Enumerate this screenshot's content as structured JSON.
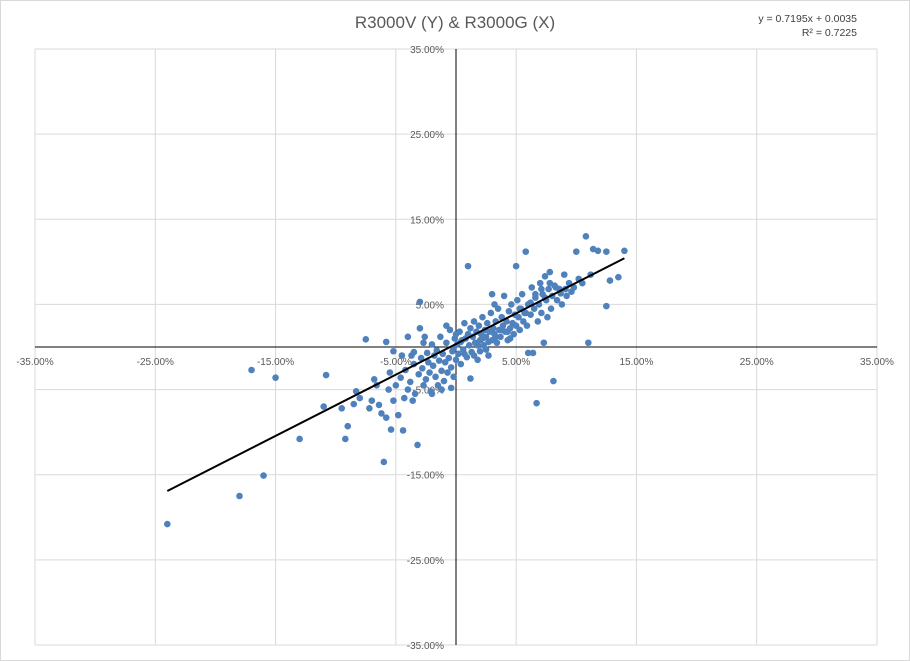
{
  "chart_data": {
    "type": "scatter",
    "title": "R3000V (Y) & R3000G (X)",
    "xlabel": "",
    "ylabel": "",
    "xlim": [
      -0.35,
      0.35
    ],
    "ylim": [
      -0.35,
      0.35
    ],
    "grid": true,
    "x_ticks": [
      "-35.00%",
      "-25.00%",
      "-15.00%",
      "-5.00%",
      "5.00%",
      "15.00%",
      "25.00%",
      "35.00%"
    ],
    "x_tick_values": [
      -0.35,
      -0.25,
      -0.15,
      -0.05,
      0.05,
      0.15,
      0.25,
      0.35
    ],
    "y_ticks": [
      "35.00%",
      "25.00%",
      "15.00%",
      "5.00%",
      "-5.00%",
      "-15.00%",
      "-25.00%",
      "-35.00%"
    ],
    "y_tick_values": [
      0.35,
      0.25,
      0.15,
      0.05,
      -0.05,
      -0.15,
      -0.25,
      -0.35
    ],
    "trendline": {
      "equation": "y = 0.7195x + 0.0035",
      "r_squared": "R² = 0.7225",
      "slope": 0.7195,
      "intercept": 0.0035,
      "x_range": [
        -0.24,
        0.14
      ]
    },
    "colors": {
      "points": "#4f81bd",
      "trendline": "#000000",
      "grid": "#d9d9d9",
      "axis": "#000000"
    },
    "series": [
      {
        "points": [
          [
            -0.24,
            -0.208
          ],
          [
            -0.18,
            -0.175
          ],
          [
            -0.16,
            -0.151
          ],
          [
            -0.17,
            -0.027
          ],
          [
            -0.15,
            -0.036
          ],
          [
            -0.13,
            -0.108
          ],
          [
            -0.11,
            -0.07
          ],
          [
            -0.108,
            -0.033
          ],
          [
            -0.095,
            -0.072
          ],
          [
            -0.09,
            -0.093
          ],
          [
            -0.092,
            -0.108
          ],
          [
            -0.085,
            -0.067
          ],
          [
            -0.083,
            -0.052
          ],
          [
            -0.08,
            -0.06
          ],
          [
            -0.075,
            0.009
          ],
          [
            -0.072,
            -0.072
          ],
          [
            -0.07,
            -0.063
          ],
          [
            -0.068,
            -0.038
          ],
          [
            -0.066,
            -0.045
          ],
          [
            -0.064,
            -0.068
          ],
          [
            -0.062,
            -0.078
          ],
          [
            -0.06,
            -0.135
          ],
          [
            -0.058,
            -0.083
          ],
          [
            -0.056,
            -0.05
          ],
          [
            -0.055,
            -0.03
          ],
          [
            -0.054,
            -0.097
          ],
          [
            -0.052,
            -0.063
          ],
          [
            -0.05,
            -0.045
          ],
          [
            -0.048,
            -0.08
          ],
          [
            -0.046,
            -0.036
          ],
          [
            -0.044,
            -0.098
          ],
          [
            -0.043,
            -0.06
          ],
          [
            -0.042,
            -0.027
          ],
          [
            -0.04,
            -0.05
          ],
          [
            -0.038,
            -0.041
          ],
          [
            -0.037,
            -0.01
          ],
          [
            -0.036,
            -0.063
          ],
          [
            -0.035,
            -0.02
          ],
          [
            -0.034,
            -0.055
          ],
          [
            -0.032,
            -0.115
          ],
          [
            -0.031,
            -0.032
          ],
          [
            -0.03,
            0.022
          ],
          [
            -0.03,
            0.053
          ],
          [
            -0.029,
            -0.013
          ],
          [
            -0.028,
            -0.025
          ],
          [
            -0.027,
            -0.045
          ],
          [
            -0.026,
            0.012
          ],
          [
            -0.025,
            -0.038
          ],
          [
            -0.024,
            -0.007
          ],
          [
            -0.023,
            -0.018
          ],
          [
            -0.022,
            -0.03
          ],
          [
            -0.021,
            -0.052
          ],
          [
            -0.02,
            0.003
          ],
          [
            -0.019,
            -0.022
          ],
          [
            -0.018,
            -0.01
          ],
          [
            -0.017,
            -0.035
          ],
          [
            -0.016,
            -0.004
          ],
          [
            -0.015,
            -0.045
          ],
          [
            -0.014,
            -0.016
          ],
          [
            -0.013,
            0.012
          ],
          [
            -0.012,
            -0.028
          ],
          [
            -0.011,
            -0.008
          ],
          [
            -0.01,
            -0.04
          ],
          [
            -0.009,
            -0.018
          ],
          [
            -0.008,
            0.005
          ],
          [
            -0.007,
            -0.03
          ],
          [
            -0.006,
            -0.013
          ],
          [
            -0.005,
            0.02
          ],
          [
            -0.004,
            -0.024
          ],
          [
            -0.003,
            -0.005
          ],
          [
            -0.002,
            -0.035
          ],
          [
            -0.001,
            0.01
          ],
          [
            0.0,
            -0.015
          ],
          [
            0.001,
            0.003
          ],
          [
            0.002,
            -0.008
          ],
          [
            0.003,
            0.018
          ],
          [
            0.004,
            -0.02
          ],
          [
            0.005,
            0.008
          ],
          [
            0.006,
            -0.003
          ],
          [
            0.007,
            0.028
          ],
          [
            0.008,
            0.01
          ],
          [
            0.009,
            -0.012
          ],
          [
            0.01,
            0.015
          ],
          [
            0.011,
            0.002
          ],
          [
            0.012,
            0.022
          ],
          [
            0.013,
            -0.006
          ],
          [
            0.014,
            0.012
          ],
          [
            0.015,
            0.03
          ],
          [
            0.016,
            0.005
          ],
          [
            0.017,
            0.018
          ],
          [
            0.018,
            -0.015
          ],
          [
            0.019,
            0.025
          ],
          [
            0.02,
            0.008
          ],
          [
            0.021,
            0.015
          ],
          [
            0.022,
            0.035
          ],
          [
            0.023,
            0.002
          ],
          [
            0.024,
            0.02
          ],
          [
            0.025,
            0.012
          ],
          [
            0.026,
            0.028
          ],
          [
            0.027,
            -0.01
          ],
          [
            0.028,
            0.018
          ],
          [
            0.029,
            0.04
          ],
          [
            0.03,
            0.008
          ],
          [
            0.031,
            0.022
          ],
          [
            0.032,
            0.015
          ],
          [
            0.033,
            0.03
          ],
          [
            0.034,
            0.005
          ],
          [
            0.035,
            0.045
          ],
          [
            0.036,
            0.02
          ],
          [
            0.037,
            0.012
          ],
          [
            0.038,
            0.035
          ],
          [
            0.039,
            0.025
          ],
          [
            0.04,
            0.06
          ],
          [
            0.041,
            0.018
          ],
          [
            0.042,
            0.03
          ],
          [
            0.043,
            0.008
          ],
          [
            0.044,
            0.042
          ],
          [
            0.045,
            0.022
          ],
          [
            0.046,
            0.05
          ],
          [
            0.047,
            0.028
          ],
          [
            0.048,
            0.015
          ],
          [
            0.049,
            0.038
          ],
          [
            0.05,
            0.025
          ],
          [
            0.051,
            0.055
          ],
          [
            0.052,
            0.035
          ],
          [
            0.053,
            0.02
          ],
          [
            0.054,
            0.045
          ],
          [
            0.055,
            0.062
          ],
          [
            0.056,
            0.03
          ],
          [
            0.057,
            0.04
          ],
          [
            0.058,
            0.112
          ],
          [
            0.059,
            0.025
          ],
          [
            0.06,
            0.05
          ],
          [
            0.062,
            0.038
          ],
          [
            0.063,
            0.07
          ],
          [
            0.064,
            -0.007
          ],
          [
            0.065,
            0.045
          ],
          [
            0.066,
            0.058
          ],
          [
            0.067,
            -0.066
          ],
          [
            0.068,
            0.03
          ],
          [
            0.069,
            0.05
          ],
          [
            0.07,
            0.075
          ],
          [
            0.071,
            0.04
          ],
          [
            0.072,
            0.062
          ],
          [
            0.073,
            0.005
          ],
          [
            0.074,
            0.083
          ],
          [
            0.075,
            0.055
          ],
          [
            0.076,
            0.035
          ],
          [
            0.077,
            0.068
          ],
          [
            0.078,
            0.088
          ],
          [
            0.079,
            0.045
          ],
          [
            0.08,
            0.06
          ],
          [
            0.081,
            -0.04
          ],
          [
            0.082,
            0.072
          ],
          [
            0.084,
            0.055
          ],
          [
            0.086,
            0.068
          ],
          [
            0.088,
            0.05
          ],
          [
            0.09,
            0.085
          ],
          [
            0.092,
            0.06
          ],
          [
            0.094,
            0.075
          ],
          [
            0.096,
            0.065
          ],
          [
            0.098,
            0.07
          ],
          [
            0.1,
            0.112
          ],
          [
            0.102,
            0.08
          ],
          [
            0.105,
            0.075
          ],
          [
            0.108,
            0.13
          ],
          [
            0.11,
            0.005
          ],
          [
            0.112,
            0.085
          ],
          [
            0.114,
            0.115
          ],
          [
            0.118,
            0.113
          ],
          [
            0.125,
            0.112
          ],
          [
            0.125,
            0.048
          ],
          [
            0.128,
            0.078
          ],
          [
            0.135,
            0.082
          ],
          [
            0.14,
            0.113
          ],
          [
            -0.004,
            -0.048
          ],
          [
            -0.035,
            -0.006
          ],
          [
            -0.027,
            0.005
          ],
          [
            -0.012,
            -0.05
          ],
          [
            -0.02,
            -0.055
          ],
          [
            0.012,
            -0.037
          ],
          [
            0.015,
            -0.01
          ],
          [
            0.02,
            -0.005
          ],
          [
            0.025,
            -0.003
          ],
          [
            0.032,
            0.05
          ],
          [
            0.01,
            0.095
          ],
          [
            0.05,
            0.095
          ],
          [
            0.03,
            0.062
          ],
          [
            0.045,
            0.01
          ],
          [
            0.06,
            -0.007
          ],
          [
            -0.045,
            -0.01
          ],
          [
            -0.052,
            -0.005
          ],
          [
            -0.058,
            0.006
          ],
          [
            -0.04,
            0.012
          ],
          [
            -0.008,
            0.025
          ],
          [
            0.0,
            0.015
          ],
          [
            -0.002,
            -0.002
          ],
          [
            0.004,
            0.006
          ],
          [
            0.007,
            -0.008
          ],
          [
            0.018,
            0.002
          ],
          [
            0.022,
            0.01
          ],
          [
            0.027,
            0.006
          ],
          [
            0.033,
            0.012
          ],
          [
            0.038,
            0.02
          ],
          [
            0.043,
            0.018
          ],
          [
            0.053,
            0.045
          ],
          [
            0.058,
            0.04
          ],
          [
            0.062,
            0.052
          ],
          [
            0.066,
            0.062
          ],
          [
            0.071,
            0.068
          ],
          [
            0.074,
            0.058
          ],
          [
            0.078,
            0.075
          ],
          [
            0.083,
            0.07
          ],
          [
            0.087,
            0.063
          ],
          [
            0.091,
            0.068
          ]
        ]
      }
    ]
  }
}
